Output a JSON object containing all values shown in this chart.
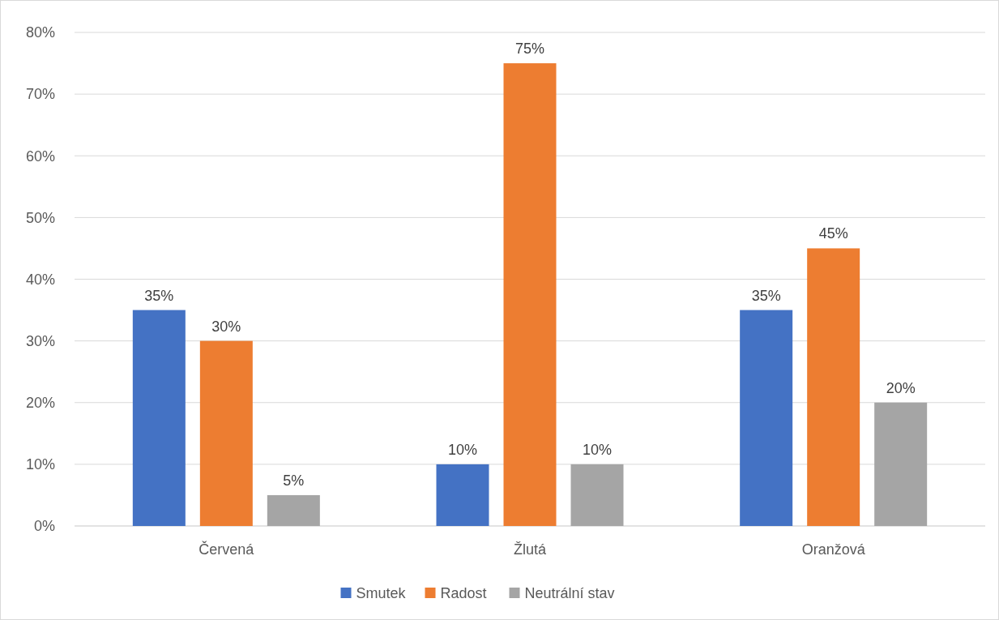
{
  "chart_data": {
    "type": "bar",
    "categories": [
      "Červená",
      "Žlutá",
      "Oranžová"
    ],
    "series": [
      {
        "name": "Smutek",
        "color": "#4472c4",
        "values": [
          35,
          10,
          35
        ],
        "value_labels": [
          "35%",
          "10%",
          "35%"
        ]
      },
      {
        "name": "Radost",
        "color": "#ed7d31",
        "values": [
          30,
          75,
          45
        ],
        "value_labels": [
          "30%",
          "75%",
          "45%"
        ]
      },
      {
        "name": "Neutrální stav",
        "color": "#a5a5a5",
        "values": [
          5,
          10,
          20
        ],
        "value_labels": [
          "5%",
          "10%",
          "20%"
        ]
      }
    ],
    "ylim": [
      0,
      80
    ],
    "yticks": [
      {
        "value": 0,
        "label": "0%"
      },
      {
        "value": 10,
        "label": "10%"
      },
      {
        "value": 20,
        "label": "20%"
      },
      {
        "value": 30,
        "label": "30%"
      },
      {
        "value": 40,
        "label": "40%"
      },
      {
        "value": 50,
        "label": "50%"
      },
      {
        "value": 60,
        "label": "60%"
      },
      {
        "value": 70,
        "label": "70%"
      },
      {
        "value": 80,
        "label": "80%"
      }
    ],
    "grid": "y",
    "legend": "bottom"
  }
}
